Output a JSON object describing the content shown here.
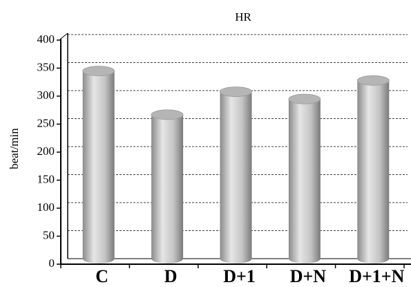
{
  "chart_data": {
    "type": "bar",
    "title": "HR",
    "ylabel": "beat/min",
    "categories": [
      "C",
      "D",
      "D+1",
      "D+N",
      "D+1+N"
    ],
    "values": [
      335,
      257,
      298,
      285,
      318
    ],
    "color": "#b5b5b5",
    "ylim": [
      0,
      400
    ],
    "yticks": [
      0,
      50,
      100,
      150,
      200,
      250,
      300,
      350,
      400
    ],
    "grid": true
  }
}
